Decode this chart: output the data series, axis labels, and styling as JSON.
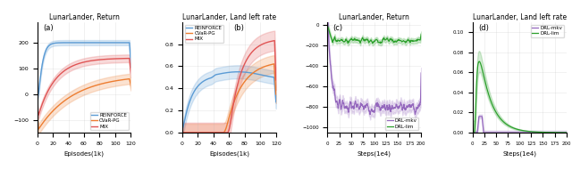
{
  "subplot_titles": [
    "LunarLander, Return",
    "LunarLander, Land left rate",
    "LunarLander, Return",
    "LunarLander, Land left rate"
  ],
  "subplot_labels": [
    "(a)",
    "(b)",
    "(c)",
    "(d)"
  ],
  "colors": {
    "REINFORCE": "#5b9bd5",
    "CVaR-PG": "#ed7d31",
    "MIX": "#e05555",
    "DRL-mkv": "#9467bd",
    "DRL-lim": "#2ca02c"
  },
  "figsize": [
    6.4,
    1.91
  ],
  "dpi": 100
}
